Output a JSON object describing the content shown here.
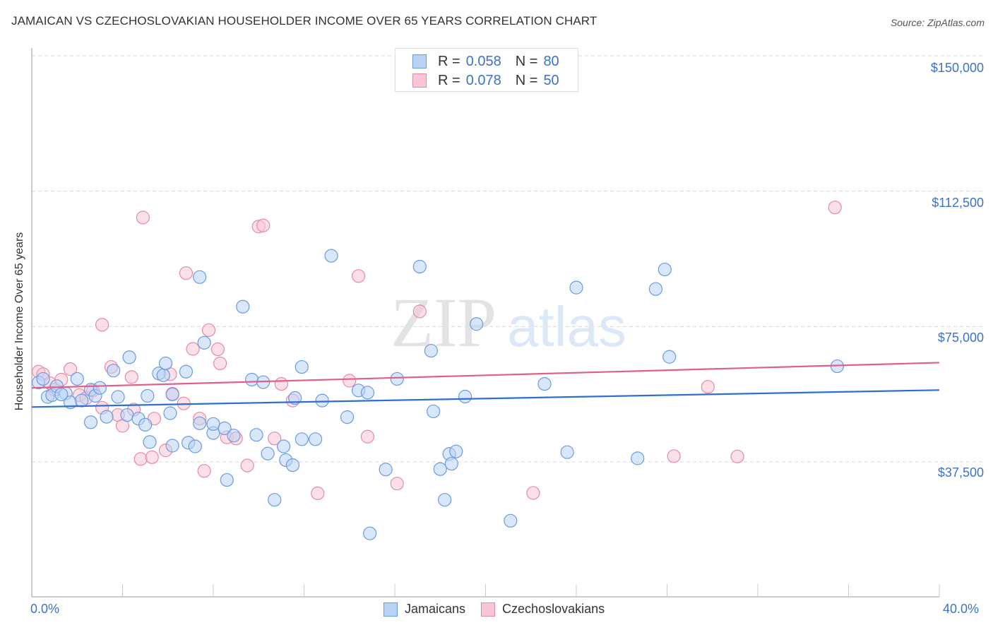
{
  "title": "JAMAICAN VS CZECHOSLOVAKIAN HOUSEHOLDER INCOME OVER 65 YEARS CORRELATION CHART",
  "source": "Source: ZipAtlas.com",
  "watermark": {
    "zip": "ZIP",
    "atlas": "atlas"
  },
  "legend_top": [
    {
      "r_label": "R =",
      "r_value": "0.058",
      "n_label": "N =",
      "n_value": "80",
      "color": "#b9d3f5",
      "border": "#6a9be0"
    },
    {
      "r_label": "R =",
      "r_value": "0.078",
      "n_label": "N =",
      "n_value": "50",
      "color": "#f9c6d6",
      "border": "#e68aa8"
    }
  ],
  "legend_bottom": [
    {
      "label": "Jamaicans",
      "color": "#b9d3f5",
      "border": "#6a9be0"
    },
    {
      "label": "Czechoslovakians",
      "color": "#f9c6d6",
      "border": "#e68aa8"
    }
  ],
  "axes": {
    "ylabel": "Householder Income Over 65 years",
    "yticks": [
      "$150,000",
      "$112,500",
      "$75,000",
      "$37,500"
    ],
    "xticks": [
      "0.0%",
      "40.0%"
    ]
  },
  "colors": {
    "jamaicans_line": "#2e6fd0",
    "czech_line": "#e0608a",
    "tick_text": "#3b73c8"
  },
  "chart_data": {
    "type": "scatter",
    "title": "JAMAICAN VS CZECHOSLOVAKIAN HOUSEHOLDER INCOME OVER 65 YEARS CORRELATION CHART",
    "xlabel": "",
    "ylabel": "Householder Income Over 65 years",
    "xlim": [
      0,
      40
    ],
    "ylim": [
      0,
      155000
    ],
    "x_tick_labels": [
      "0.0%",
      "40.0%"
    ],
    "y_tick_values": [
      37500,
      75000,
      112500,
      150000
    ],
    "grid": true,
    "legend_position": "top-center and bottom",
    "series": [
      {
        "name": "Jamaicans",
        "R": 0.058,
        "N": 80,
        "trendline": {
          "x": [
            0,
            40
          ],
          "y": [
            52700,
            57400
          ]
        },
        "points": [
          [
            0.3,
            59500
          ],
          [
            0.5,
            60500
          ],
          [
            0.7,
            55500
          ],
          [
            0.9,
            56000
          ],
          [
            1.1,
            58500
          ],
          [
            1.5,
            56500
          ],
          [
            1.7,
            54000
          ],
          [
            2.0,
            60500
          ],
          [
            2.2,
            54500
          ],
          [
            2.6,
            57500
          ],
          [
            2.6,
            48500
          ],
          [
            2.8,
            55800
          ],
          [
            3.3,
            50000
          ],
          [
            3.6,
            62800
          ],
          [
            3.8,
            55500
          ],
          [
            4.2,
            50500
          ],
          [
            4.3,
            66500
          ],
          [
            4.7,
            49500
          ],
          [
            5.0,
            47800
          ],
          [
            5.1,
            55800
          ],
          [
            5.2,
            43000
          ],
          [
            5.6,
            62000
          ],
          [
            5.8,
            61500
          ],
          [
            5.9,
            64800
          ],
          [
            6.1,
            51000
          ],
          [
            6.2,
            42000
          ],
          [
            6.2,
            56200
          ],
          [
            6.8,
            62500
          ],
          [
            6.9,
            42800
          ],
          [
            7.2,
            41800
          ],
          [
            7.4,
            88700
          ],
          [
            7.6,
            70500
          ],
          [
            7.4,
            48200
          ],
          [
            8.0,
            45500
          ],
          [
            8.0,
            48000
          ],
          [
            8.5,
            46800
          ],
          [
            8.9,
            44800
          ],
          [
            8.6,
            32500
          ],
          [
            9.3,
            80500
          ],
          [
            9.7,
            60300
          ],
          [
            9.9,
            45000
          ],
          [
            10.2,
            59600
          ],
          [
            10.4,
            39800
          ],
          [
            10.7,
            27000
          ],
          [
            11.2,
            38000
          ],
          [
            11.1,
            41800
          ],
          [
            11.5,
            36600
          ],
          [
            11.6,
            55200
          ],
          [
            11.9,
            43800
          ],
          [
            11.9,
            63800
          ],
          [
            12.5,
            43800
          ],
          [
            12.8,
            54500
          ],
          [
            13.2,
            94600
          ],
          [
            13.9,
            49900
          ],
          [
            14.4,
            57300
          ],
          [
            14.8,
            56700
          ],
          [
            14.9,
            17700
          ],
          [
            15.6,
            35400
          ],
          [
            16.1,
            60500
          ],
          [
            17.1,
            91600
          ],
          [
            17.6,
            68300
          ],
          [
            17.7,
            51500
          ],
          [
            18.0,
            35500
          ],
          [
            18.2,
            27000
          ],
          [
            18.4,
            39700
          ],
          [
            18.5,
            37000
          ],
          [
            18.7,
            40400
          ],
          [
            19.1,
            55600
          ],
          [
            19.6,
            75700
          ],
          [
            21.1,
            21200
          ],
          [
            22.6,
            59100
          ],
          [
            23.6,
            40200
          ],
          [
            24.0,
            85800
          ],
          [
            26.7,
            38500
          ],
          [
            27.5,
            85400
          ],
          [
            27.9,
            90800
          ],
          [
            28.1,
            66600
          ],
          [
            35.5,
            64000
          ],
          [
            1.3,
            56200
          ],
          [
            3.0,
            58000
          ]
        ]
      },
      {
        "name": "Czechoslovakians",
        "R": 0.078,
        "N": 50,
        "trendline": {
          "x": [
            0,
            40
          ],
          "y": [
            58000,
            65000
          ]
        },
        "points": [
          [
            0.3,
            62500
          ],
          [
            0.5,
            61800
          ],
          [
            0.8,
            59300
          ],
          [
            1.0,
            57500
          ],
          [
            1.3,
            60300
          ],
          [
            1.7,
            63200
          ],
          [
            2.1,
            56000
          ],
          [
            2.4,
            55200
          ],
          [
            2.7,
            57300
          ],
          [
            3.1,
            52500
          ],
          [
            3.1,
            75500
          ],
          [
            3.5,
            63800
          ],
          [
            3.8,
            50500
          ],
          [
            4.0,
            47500
          ],
          [
            4.4,
            61000
          ],
          [
            4.5,
            52000
          ],
          [
            4.8,
            38300
          ],
          [
            4.9,
            105200
          ],
          [
            5.3,
            38800
          ],
          [
            5.4,
            49500
          ],
          [
            5.9,
            40700
          ],
          [
            6.1,
            61800
          ],
          [
            6.2,
            56400
          ],
          [
            6.7,
            53700
          ],
          [
            6.8,
            89800
          ],
          [
            7.1,
            68800
          ],
          [
            7.4,
            49500
          ],
          [
            7.6,
            35000
          ],
          [
            7.8,
            74000
          ],
          [
            8.2,
            68700
          ],
          [
            8.3,
            64800
          ],
          [
            8.6,
            44300
          ],
          [
            9.0,
            44000
          ],
          [
            9.5,
            36500
          ],
          [
            10.0,
            102700
          ],
          [
            10.2,
            103000
          ],
          [
            10.7,
            44000
          ],
          [
            11.0,
            59100
          ],
          [
            11.5,
            54500
          ],
          [
            12.6,
            28800
          ],
          [
            14.0,
            60000
          ],
          [
            14.4,
            89000
          ],
          [
            14.8,
            44500
          ],
          [
            16.1,
            31500
          ],
          [
            17.1,
            79200
          ],
          [
            22.1,
            28900
          ],
          [
            28.3,
            39100
          ],
          [
            29.8,
            58300
          ],
          [
            31.1,
            39000
          ],
          [
            35.4,
            108000
          ]
        ]
      }
    ]
  }
}
